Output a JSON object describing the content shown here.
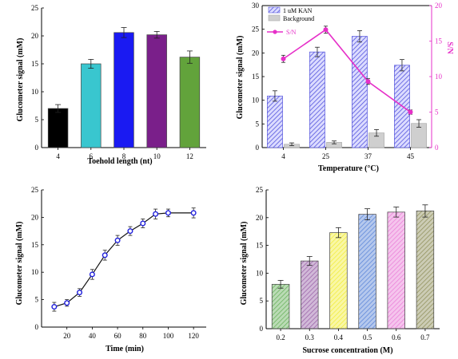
{
  "chart_data": [
    {
      "panel": "top-left",
      "type": "bar",
      "xlabel": "Toehold length (nt)",
      "ylabel": "Glucometer signal (mM)",
      "categories": [
        "4",
        "6",
        "8",
        "10",
        "12"
      ],
      "values": [
        7.0,
        15.0,
        20.6,
        20.2,
        16.2
      ],
      "errors": [
        0.7,
        0.8,
        0.9,
        0.6,
        1.1
      ],
      "colors": [
        "#000000",
        "#39c6cf",
        "#1a1af2",
        "#7a1f8a",
        "#62a33b"
      ],
      "ylim": [
        0,
        25
      ],
      "yticks": [
        "0",
        "5",
        "10",
        "15",
        "20",
        "25"
      ],
      "grid": false
    },
    {
      "panel": "top-right",
      "type": "bar",
      "xlabel": "Temperature (°C)",
      "ylabel": "Glucometer signal (mM)",
      "ylabel_right": "S/N",
      "categories": [
        "4",
        "25",
        "37",
        "45"
      ],
      "series": [
        {
          "name": "1 uM KAN",
          "values": [
            10.9,
            20.2,
            23.5,
            17.4
          ],
          "errors": [
            1.1,
            1.0,
            1.2,
            1.2
          ],
          "color": "#6666ee",
          "style": "hatched"
        },
        {
          "name": "Background",
          "values": [
            0.7,
            1.1,
            3.1,
            5.1
          ],
          "errors": [
            0.3,
            0.3,
            0.7,
            0.8
          ],
          "color": "#cfcfcf",
          "style": "solid"
        },
        {
          "name": "S/N",
          "values": [
            12.5,
            16.6,
            9.3,
            5.0
          ],
          "errors": [
            0.5,
            0.5,
            0.4,
            0.3
          ],
          "color": "#e62fc8",
          "style": "line",
          "axis": "right"
        }
      ],
      "ylim": [
        0,
        30
      ],
      "ylim_right": [
        0,
        20
      ],
      "yticks": [
        "0",
        "5",
        "10",
        "15",
        "20",
        "25",
        "30"
      ],
      "yticks_right": [
        "0",
        "5",
        "10",
        "15",
        "20"
      ],
      "legend": "top-left",
      "grid": false
    },
    {
      "panel": "bottom-left",
      "type": "line",
      "xlabel": "Time (min)",
      "ylabel": "Glucometer signal (mM)",
      "x": [
        10,
        20,
        30,
        40,
        50,
        60,
        70,
        80,
        90,
        100,
        120
      ],
      "values": [
        3.7,
        4.4,
        6.3,
        9.6,
        13.1,
        15.8,
        17.5,
        18.9,
        20.6,
        20.8,
        20.8
      ],
      "errors": [
        0.8,
        0.6,
        0.7,
        0.9,
        0.9,
        0.9,
        0.8,
        0.8,
        0.9,
        0.7,
        0.9
      ],
      "color": "#2222dd",
      "xlim": [
        0,
        130
      ],
      "ylim": [
        0,
        25
      ],
      "xticks": [
        "20",
        "40",
        "60",
        "80",
        "100",
        "120"
      ],
      "yticks": [
        "0",
        "5",
        "10",
        "15",
        "20",
        "25"
      ],
      "grid": false
    },
    {
      "panel": "bottom-right",
      "type": "bar",
      "xlabel": "Sucrose concentration (M)",
      "ylabel": "Glucometer signal (mM)",
      "categories": [
        "0.2",
        "0.3",
        "0.4",
        "0.5",
        "0.6",
        "0.7"
      ],
      "values": [
        8.0,
        12.2,
        17.3,
        20.6,
        21.0,
        21.2
      ],
      "errors": [
        0.7,
        0.8,
        0.9,
        1.0,
        0.9,
        1.1
      ],
      "colors": [
        "#67b05a",
        "#9a63a8",
        "#f2ed3a",
        "#5b85d8",
        "#ea7fd8",
        "#8f8f5a"
      ],
      "style": "hatched",
      "ylim": [
        0,
        25
      ],
      "yticks": [
        "0",
        "5",
        "10",
        "15",
        "20",
        "25"
      ],
      "grid": false
    }
  ]
}
